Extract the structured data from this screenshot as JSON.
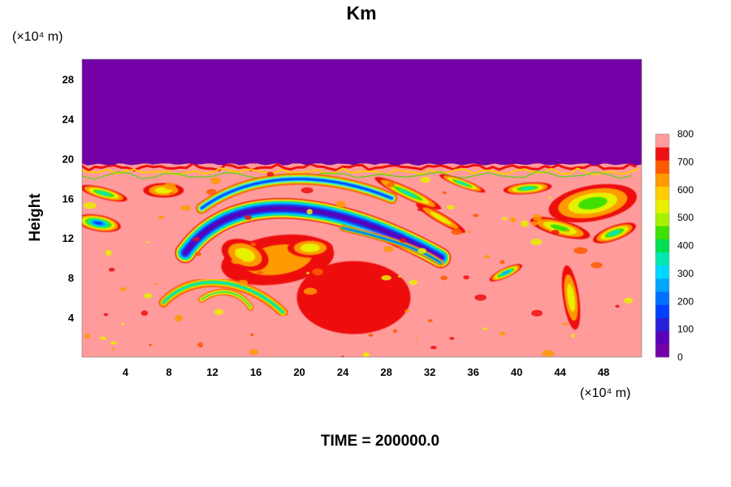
{
  "chart_data": {
    "type": "heatmap",
    "title": "Km",
    "xlabel": "",
    "ylabel": "Height",
    "x_unit": "(×10⁴ m)",
    "y_unit": "(×10⁴ m)",
    "xlim": [
      0,
      51.5
    ],
    "ylim": [
      0,
      30
    ],
    "x_ticks": [
      4,
      8,
      12,
      16,
      20,
      24,
      28,
      32,
      36,
      40,
      44,
      48
    ],
    "y_ticks": [
      4,
      8,
      12,
      16,
      20,
      24,
      28
    ],
    "footer": "TIME = 200000.0",
    "colorbar": {
      "min": 0,
      "max": 800,
      "tick_labels": [
        0,
        100,
        200,
        300,
        400,
        500,
        600,
        700,
        800
      ],
      "levels": [
        {
          "value": 0,
          "color": "#7300a6"
        },
        {
          "value": 50,
          "color": "#5a00b8"
        },
        {
          "value": 100,
          "color": "#2a1fd8"
        },
        {
          "value": 150,
          "color": "#0040ff"
        },
        {
          "value": 200,
          "color": "#0070ff"
        },
        {
          "value": 250,
          "color": "#00a5ff"
        },
        {
          "value": 300,
          "color": "#00d8ff"
        },
        {
          "value": 350,
          "color": "#00e8b0"
        },
        {
          "value": 400,
          "color": "#00e050"
        },
        {
          "value": 450,
          "color": "#40e000"
        },
        {
          "value": 500,
          "color": "#a8f000"
        },
        {
          "value": 550,
          "color": "#e8f000"
        },
        {
          "value": 600,
          "color": "#ffcc00"
        },
        {
          "value": 650,
          "color": "#ff9a00"
        },
        {
          "value": 700,
          "color": "#ff5a00"
        },
        {
          "value": 750,
          "color": "#ee1111"
        },
        {
          "value": 800,
          "color": "#ff9b9b"
        }
      ]
    },
    "fields": {
      "upper_layer": {
        "y_range": [
          19.5,
          30
        ],
        "value": 0
      },
      "lower_layer": {
        "y_range": [
          0,
          19.5
        ],
        "value": 800
      },
      "features": [
        {
          "type": "band",
          "x_range": [
            10,
            36
          ],
          "y_center": 13.5,
          "value": 100
        },
        {
          "type": "band",
          "x_range": [
            12,
            30
          ],
          "y_center": 16.5,
          "value": 200
        },
        {
          "type": "patch",
          "x_range": [
            12,
            24
          ],
          "y_range": [
            8,
            12
          ],
          "value": 700
        },
        {
          "type": "arc",
          "x_range": [
            8,
            18
          ],
          "y_range": [
            5,
            8
          ],
          "value": 500
        },
        {
          "type": "patch",
          "x_range": [
            20,
            30
          ],
          "y_range": [
            3,
            9
          ],
          "value": 700
        },
        {
          "type": "patch",
          "x_range": [
            40,
            51.5
          ],
          "y_range": [
            11,
            18
          ],
          "value": 450
        },
        {
          "type": "patch",
          "x_range": [
            0,
            6
          ],
          "y_range": [
            12,
            18
          ],
          "value": 300
        }
      ]
    }
  }
}
